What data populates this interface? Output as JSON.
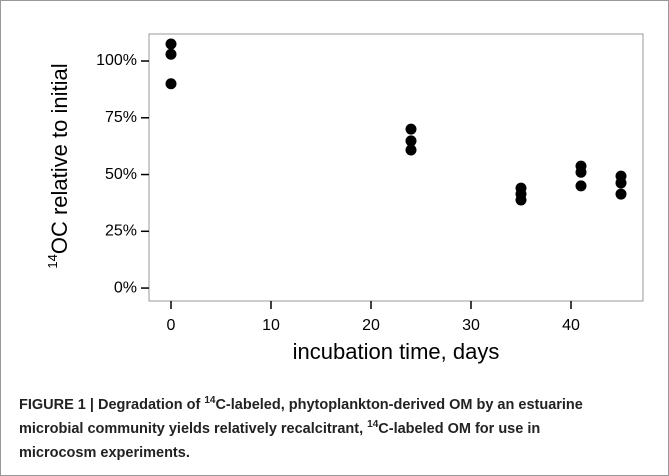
{
  "chart_data": {
    "type": "scatter",
    "ylabel_sup": "14",
    "ylabel": "OC relative to initial",
    "xlabel": "incubation time, days",
    "caption": [
      "FIGURE 1 | Degradation of ",
      "14",
      "C-labeled, phytoplankton-derived OM by an estuarine microbial community yields relatively recalcitrant, ",
      "14",
      "C-labeled OM for use in microcosm experiments."
    ],
    "series": [
      {
        "color": "#000000",
        "x": [
          0,
          0,
          0,
          24,
          24,
          24,
          35,
          35,
          35,
          41,
          41,
          41,
          45,
          45,
          45
        ],
        "values": [
          107.5,
          103,
          90,
          70,
          64.8,
          60.8,
          44,
          41.4,
          38.8,
          53.7,
          51,
          45,
          49.3,
          46.3,
          41.4
        ]
      }
    ],
    "xlim": [
      -2.2,
      47.2
    ],
    "xticks": [
      0,
      10,
      20,
      30,
      40
    ],
    "ylim": [
      -5.7,
      111.9
    ],
    "yticks": [
      {
        "value": 0,
        "label": "0%"
      },
      {
        "value": 25,
        "label": "25%"
      },
      {
        "value": 50,
        "label": "50%"
      },
      {
        "value": 75,
        "label": "75%"
      },
      {
        "value": 100,
        "label": "100%"
      }
    ]
  }
}
